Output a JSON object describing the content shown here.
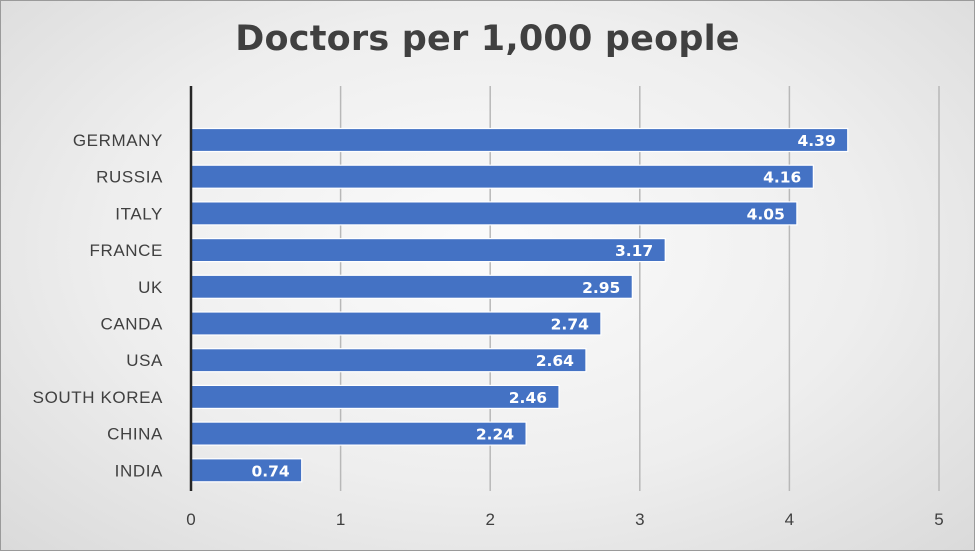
{
  "chart_data": {
    "type": "bar",
    "orientation": "horizontal",
    "title": "Doctors per 1,000 people",
    "categories": [
      "GERMANY",
      "RUSSIA",
      "ITALY",
      "FRANCE",
      "UK",
      "CANDA",
      "USA",
      "SOUTH KOREA",
      "CHINA",
      "INDIA"
    ],
    "values": [
      4.39,
      4.16,
      4.05,
      3.17,
      2.95,
      2.74,
      2.64,
      2.46,
      2.24,
      0.74
    ],
    "value_labels": [
      "4.39",
      "4.16",
      "4.05",
      "3.17",
      "2.95",
      "2.74",
      "2.64",
      "2.46",
      "2.24",
      "0.74"
    ],
    "xlim": [
      0,
      5
    ],
    "x_ticks": [
      0,
      1,
      2,
      3,
      4,
      5
    ],
    "x_tick_labels": [
      "0",
      "1",
      "2",
      "3",
      "4",
      "5"
    ],
    "grid": "vertical",
    "legend": "none",
    "colors": {
      "bar": "#4472C4",
      "bar_border": "#ffffff",
      "gridline": "#b8b8b8",
      "axis": "#262626",
      "text": "#404040",
      "data_label": "#ffffff"
    }
  }
}
